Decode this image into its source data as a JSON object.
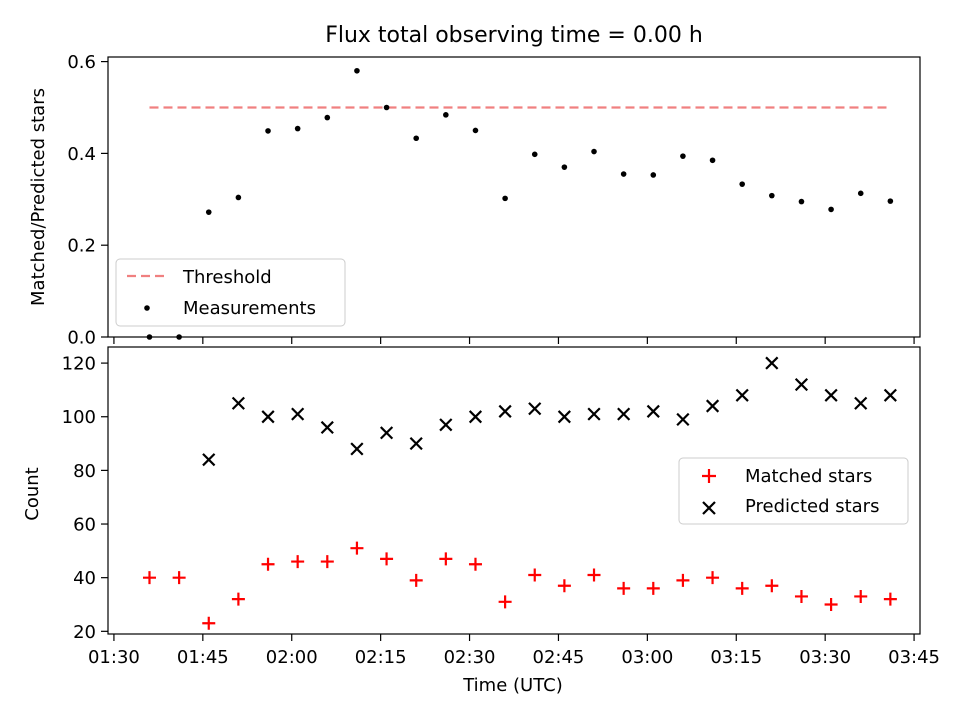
{
  "chart_data": [
    {
      "type": "scatter",
      "title": "Flux total observing time = 0.00 h",
      "xlabel": "",
      "ylabel": "Matched/Predicted stars",
      "xlim": [
        "01:29",
        "03:46"
      ],
      "ylim": [
        0,
        0.61
      ],
      "yticks": [
        0.0,
        0.2,
        0.4,
        0.6
      ],
      "ytick_labels": [
        "0.0",
        "0.2",
        "0.4",
        "0.6"
      ],
      "grid": false,
      "legend_position": "lower-left",
      "series": [
        {
          "name": "Threshold",
          "kind": "line",
          "style": "dashed",
          "color": "#f08080",
          "x": [
            "01:36",
            "03:41"
          ],
          "y": [
            0.5,
            0.5
          ]
        },
        {
          "name": "Measurements",
          "kind": "scatter",
          "marker": "dot",
          "color": "#000000",
          "x": [
            "01:36",
            "01:41",
            "01:46",
            "01:51",
            "01:56",
            "02:01",
            "02:06",
            "02:11",
            "02:16",
            "02:21",
            "02:26",
            "02:31",
            "02:36",
            "02:41",
            "02:46",
            "02:51",
            "02:56",
            "03:01",
            "03:06",
            "03:11",
            "03:16",
            "03:21",
            "03:26",
            "03:31",
            "03:36",
            "03:41"
          ],
          "y": [
            0.0,
            0.0,
            0.272,
            0.304,
            0.449,
            0.454,
            0.478,
            0.58,
            0.5,
            0.433,
            0.484,
            0.45,
            0.302,
            0.398,
            0.37,
            0.404,
            0.355,
            0.353,
            0.394,
            0.385,
            0.333,
            0.308,
            0.295,
            0.278,
            0.313,
            0.296
          ]
        }
      ]
    },
    {
      "type": "scatter",
      "title": "",
      "xlabel": "Time (UTC)",
      "ylabel": "Count",
      "xlim": [
        "01:29",
        "03:46"
      ],
      "ylim": [
        19,
        126
      ],
      "xticks": [
        "01:30",
        "01:45",
        "02:00",
        "02:15",
        "02:30",
        "02:45",
        "03:00",
        "03:15",
        "03:30",
        "03:45"
      ],
      "yticks": [
        20,
        40,
        60,
        80,
        100,
        120
      ],
      "ytick_labels": [
        "20",
        "40",
        "60",
        "80",
        "100",
        "120"
      ],
      "grid": false,
      "legend_position": "center-right",
      "series": [
        {
          "name": "Matched stars",
          "kind": "scatter",
          "marker": "plus",
          "color": "#ff0000",
          "x": [
            "01:36",
            "01:41",
            "01:46",
            "01:51",
            "01:56",
            "02:01",
            "02:06",
            "02:11",
            "02:16",
            "02:21",
            "02:26",
            "02:31",
            "02:36",
            "02:41",
            "02:46",
            "02:51",
            "02:56",
            "03:01",
            "03:06",
            "03:11",
            "03:16",
            "03:21",
            "03:26",
            "03:31",
            "03:36",
            "03:41"
          ],
          "y": [
            40,
            40,
            23,
            32,
            45,
            46,
            46,
            51,
            47,
            39,
            47,
            45,
            31,
            41,
            37,
            41,
            36,
            36,
            39,
            40,
            36,
            37,
            33,
            30,
            33,
            32
          ]
        },
        {
          "name": "Predicted stars",
          "kind": "scatter",
          "marker": "x",
          "color": "#000000",
          "x": [
            "01:46",
            "01:51",
            "01:56",
            "02:01",
            "02:06",
            "02:11",
            "02:16",
            "02:21",
            "02:26",
            "02:31",
            "02:36",
            "02:41",
            "02:46",
            "02:51",
            "02:56",
            "03:01",
            "03:06",
            "03:11",
            "03:16",
            "03:21",
            "03:26",
            "03:31",
            "03:36",
            "03:41"
          ],
          "y": [
            84,
            105,
            100,
            101,
            96,
            88,
            94,
            90,
            97,
            100,
            102,
            103,
            100,
            101,
            101,
            102,
            99,
            104,
            108,
            120,
            112,
            108,
            105,
            108
          ]
        }
      ]
    }
  ]
}
